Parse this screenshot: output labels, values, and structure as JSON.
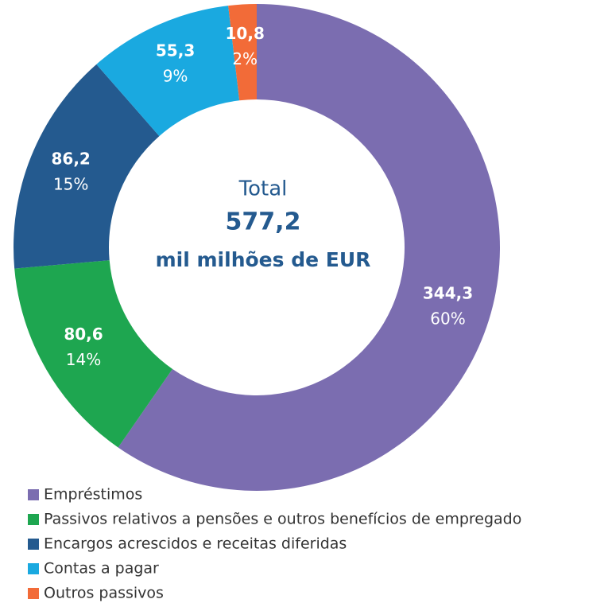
{
  "chart_data": {
    "type": "donut",
    "categories": [
      "Empréstimos",
      "Passivos relativos a pensões e outros benefícios de empregado",
      "Encargos acrescidos e receitas diferidas",
      "Contas a pagar",
      "Outros passivos"
    ],
    "values": [
      344.3,
      80.6,
      86.2,
      55.3,
      10.8
    ],
    "value_labels": [
      "344,3",
      "80,6",
      "86,2",
      "55,3",
      "10,8"
    ],
    "shares": [
      60,
      14,
      15,
      9,
      2
    ],
    "share_labels": [
      "60%",
      "14%",
      "15%",
      "9%",
      "2%"
    ],
    "colors": [
      "#7b6db0",
      "#1ea650",
      "#245a8f",
      "#1aa9e0",
      "#f26b38"
    ],
    "center_labels": [
      "Total",
      "577,2",
      "mil milhões de EUR"
    ]
  }
}
